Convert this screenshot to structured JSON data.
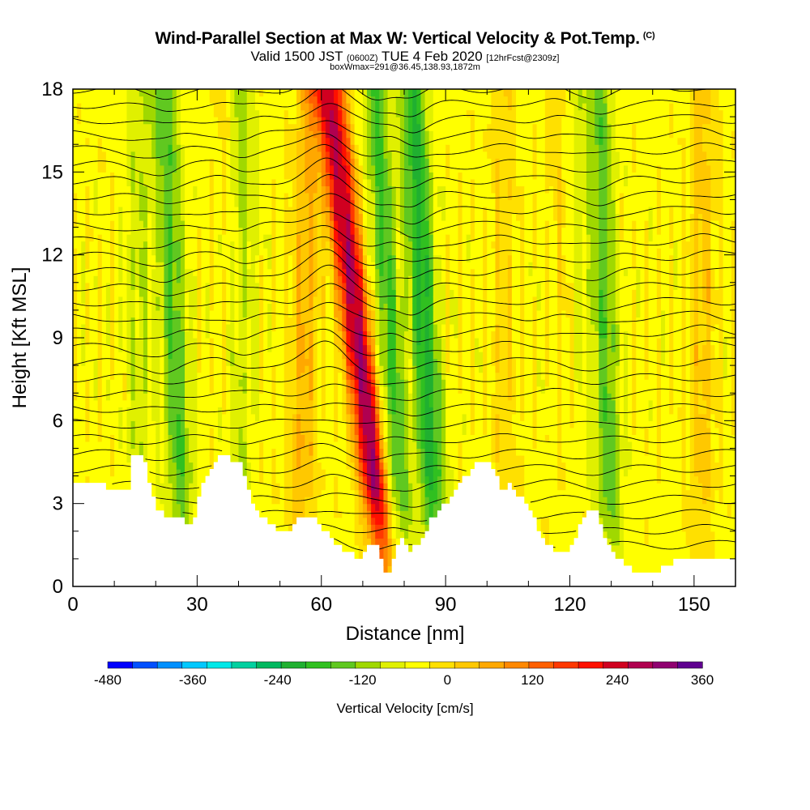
{
  "header": {
    "title": "Wind-Parallel Section at Max W: Vertical Velocity & Pot.Temp.",
    "copyright": "(C)",
    "valid_prefix": "Valid 1500 JST",
    "valid_utc": "(0600Z)",
    "valid_date": "TUE 4 Feb 2020",
    "forecast": "[12hrFcst@2309z]",
    "box_info": "boxWmax=291@36.45,138.93,1872m"
  },
  "chart_data": {
    "type": "heatmap",
    "xlabel": "Distance [nm]",
    "ylabel": "Height [Kft MSL]",
    "xlim": [
      0,
      160
    ],
    "ylim": [
      0,
      18
    ],
    "x_ticks": [
      "0",
      "30",
      "60",
      "90",
      "120",
      "150"
    ],
    "x_tick_values": [
      0,
      30,
      60,
      90,
      120,
      150
    ],
    "y_ticks": [
      "0",
      "3",
      "6",
      "9",
      "12",
      "15",
      "18"
    ],
    "y_tick_values": [
      0,
      3,
      6,
      9,
      12,
      15,
      18
    ],
    "terrain": [
      [
        0,
        3.85
      ],
      [
        7,
        3.85
      ],
      [
        8,
        3.6
      ],
      [
        14,
        3.6
      ],
      [
        14.5,
        4.8
      ],
      [
        17,
        4.8
      ],
      [
        18,
        4.2
      ],
      [
        19,
        3.5
      ],
      [
        20,
        3.0
      ],
      [
        21,
        2.7
      ],
      [
        22,
        2.6
      ],
      [
        26,
        2.6
      ],
      [
        27,
        2.3
      ],
      [
        29,
        2.3
      ],
      [
        30,
        2.8
      ],
      [
        31,
        3.5
      ],
      [
        33,
        4.0
      ],
      [
        34,
        4.3
      ],
      [
        35,
        4.8
      ],
      [
        38,
        4.8
      ],
      [
        39,
        4.4
      ],
      [
        41,
        4.4
      ],
      [
        42,
        3.8
      ],
      [
        43,
        3.3
      ],
      [
        44,
        2.8
      ],
      [
        46,
        2.5
      ],
      [
        48,
        2.3
      ],
      [
        49,
        2.0
      ],
      [
        53,
        2.0
      ],
      [
        54,
        2.3
      ],
      [
        56,
        2.6
      ],
      [
        58,
        2.5
      ],
      [
        60,
        2.1
      ],
      [
        62,
        1.8
      ],
      [
        64,
        1.4
      ],
      [
        66,
        1.3
      ],
      [
        68,
        1.2
      ],
      [
        69,
        1.0
      ],
      [
        71,
        1.3
      ],
      [
        73,
        1.6
      ],
      [
        74,
        1.2
      ],
      [
        75,
        0.6
      ],
      [
        76,
        0.3
      ],
      [
        77,
        0.5
      ],
      [
        78,
        1.4
      ],
      [
        80,
        1.7
      ],
      [
        81,
        1.3
      ],
      [
        83,
        1.5
      ],
      [
        85,
        1.8
      ],
      [
        86,
        2.3
      ],
      [
        88,
        2.7
      ],
      [
        90,
        3.0
      ],
      [
        92,
        3.3
      ],
      [
        94,
        3.8
      ],
      [
        96,
        4.2
      ],
      [
        98,
        4.5
      ],
      [
        100,
        4.5
      ],
      [
        102,
        4.1
      ],
      [
        103,
        3.7
      ],
      [
        104,
        3.4
      ],
      [
        105,
        3.8
      ],
      [
        106,
        3.6
      ],
      [
        107,
        3.4
      ],
      [
        108,
        3.2
      ],
      [
        110,
        3.0
      ],
      [
        111,
        2.6
      ],
      [
        112,
        2.2
      ],
      [
        113,
        1.9
      ],
      [
        114,
        1.6
      ],
      [
        116,
        1.3
      ],
      [
        118,
        1.3
      ],
      [
        120,
        1.3
      ],
      [
        121,
        1.7
      ],
      [
        122,
        2.0
      ],
      [
        123,
        2.3
      ],
      [
        124,
        2.6
      ],
      [
        126,
        2.8
      ],
      [
        127,
        2.5
      ],
      [
        128,
        2.0
      ],
      [
        129,
        1.6
      ],
      [
        130,
        1.3
      ],
      [
        132,
        1.0
      ],
      [
        134,
        0.8
      ],
      [
        136,
        0.5
      ],
      [
        138,
        0.4
      ],
      [
        140,
        0.5
      ],
      [
        142,
        0.6
      ],
      [
        144,
        0.8
      ],
      [
        146,
        1.0
      ],
      [
        160,
        1.0
      ]
    ],
    "updrafts": [
      {
        "x_base": 76,
        "x_top": 63,
        "strength": 250
      },
      {
        "x_base": 75,
        "x_top": 60,
        "strength": 160
      },
      {
        "x_base": 55,
        "x_top": 57,
        "strength": 100
      },
      {
        "x_base": 122,
        "x_top": 118,
        "strength": 90
      },
      {
        "x_base": 152,
        "x_top": 152,
        "strength": 70
      },
      {
        "x_base": 45,
        "x_top": 37,
        "strength": 60
      },
      {
        "x_base": 104,
        "x_top": 104,
        "strength": 45
      }
    ],
    "downdrafts": [
      {
        "x_base": 88,
        "x_top": 82,
        "strength": -200
      },
      {
        "x_base": 80,
        "x_top": 73,
        "strength": -150
      },
      {
        "x_base": 27,
        "x_top": 22,
        "strength": -140
      },
      {
        "x_base": 42,
        "x_top": 40,
        "strength": -110
      },
      {
        "x_base": 130,
        "x_top": 127,
        "strength": -130
      },
      {
        "x_base": 122,
        "x_top": 120,
        "strength": -90
      },
      {
        "x_base": 16,
        "x_top": 16,
        "strength": -60
      }
    ],
    "colorbar": {
      "title": "Vertical Velocity [cm/s]",
      "min": -480,
      "max": 360,
      "step": 40,
      "tick_labels": [
        "-480",
        "-360",
        "-240",
        "-120",
        "0",
        "120",
        "240",
        "360"
      ],
      "tick_values": [
        -480,
        -360,
        -240,
        -120,
        0,
        120,
        240,
        360
      ],
      "colors": [
        "#0000ff",
        "#0050ff",
        "#0090ff",
        "#00c8ff",
        "#00e8e8",
        "#00d0a0",
        "#00b860",
        "#20b030",
        "#30c020",
        "#60c820",
        "#a0d800",
        "#e0f000",
        "#ffff00",
        "#ffe000",
        "#ffc800",
        "#ffa800",
        "#ff8800",
        "#ff6000",
        "#ff3800",
        "#ff1000",
        "#d00020",
        "#b00050",
        "#900070",
        "#600090"
      ]
    }
  }
}
